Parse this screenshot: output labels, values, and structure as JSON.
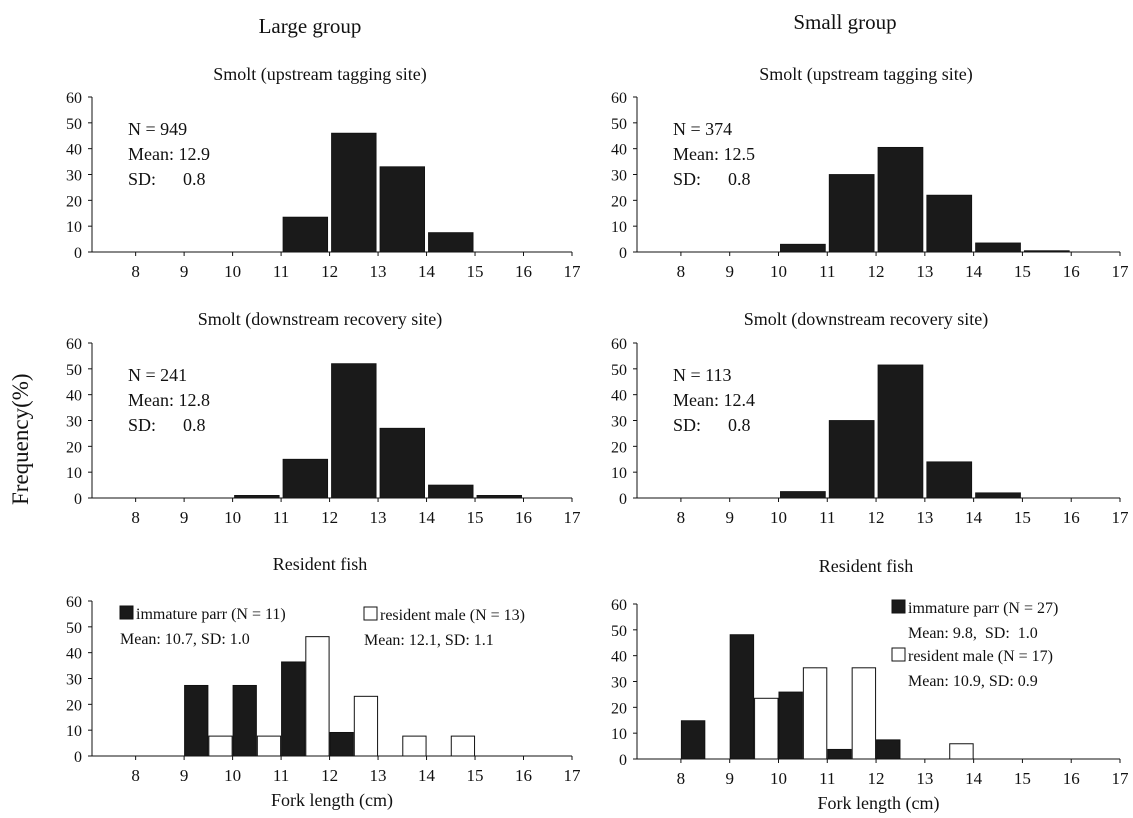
{
  "columns": {
    "left": "Large group",
    "right": "Small group"
  },
  "y_axis_label": "Frequency(%)",
  "colors": {
    "immature": "#1a1a1a",
    "resident": "#ffffff",
    "outline": "#111111"
  },
  "chart_data": [
    {
      "type": "bar",
      "group": "Large group",
      "title": "Smolt (upstream tagging site)",
      "xlabel": "",
      "ylabel": "Frequency(%)",
      "ylim": [
        0,
        60
      ],
      "y_ticks": [
        0,
        10,
        20,
        30,
        40,
        50,
        60
      ],
      "x_ticks": [
        8,
        9,
        10,
        11,
        12,
        13,
        14,
        15,
        16,
        17
      ],
      "bin_centers": [
        11.5,
        12.5,
        13.5,
        14.5
      ],
      "series": [
        {
          "style": "filled",
          "values": [
            13.5,
            46,
            33,
            7.5
          ]
        }
      ],
      "stats": [
        "N = 949",
        "Mean: 12.9",
        "SD:      0.8"
      ]
    },
    {
      "type": "bar",
      "group": "Small group",
      "title": "Smolt (upstream tagging site)",
      "xlabel": "",
      "ylabel": "Frequency(%)",
      "ylim": [
        0,
        60
      ],
      "y_ticks": [
        0,
        10,
        20,
        30,
        40,
        50,
        60
      ],
      "x_ticks": [
        8,
        9,
        10,
        11,
        12,
        13,
        14,
        15,
        16,
        17
      ],
      "bin_centers": [
        10.5,
        11.5,
        12.5,
        13.5,
        14.5,
        15.5
      ],
      "series": [
        {
          "style": "filled",
          "values": [
            3,
            30,
            40.5,
            22,
            3.5,
            0.5
          ]
        }
      ],
      "stats": [
        "N = 374",
        "Mean: 12.5",
        "SD:      0.8"
      ]
    },
    {
      "type": "bar",
      "group": "Large group",
      "title": "Smolt (downstream recovery site)",
      "xlabel": "",
      "ylabel": "Frequency(%)",
      "ylim": [
        0,
        60
      ],
      "y_ticks": [
        0,
        10,
        20,
        30,
        40,
        50,
        60
      ],
      "x_ticks": [
        8,
        9,
        10,
        11,
        12,
        13,
        14,
        15,
        16,
        17
      ],
      "bin_centers": [
        10.5,
        11.5,
        12.5,
        13.5,
        14.5,
        15.5
      ],
      "series": [
        {
          "style": "filled",
          "values": [
            1,
            15,
            52,
            27,
            5,
            1
          ]
        }
      ],
      "stats": [
        "N = 241",
        "Mean: 12.8",
        "SD:      0.8"
      ]
    },
    {
      "type": "bar",
      "group": "Small group",
      "title": "Smolt (downstream recovery site)",
      "xlabel": "",
      "ylabel": "Frequency(%)",
      "ylim": [
        0,
        60
      ],
      "y_ticks": [
        0,
        10,
        20,
        30,
        40,
        50,
        60
      ],
      "x_ticks": [
        8,
        9,
        10,
        11,
        12,
        13,
        14,
        15,
        16,
        17
      ],
      "bin_centers": [
        10.5,
        11.5,
        12.5,
        13.5,
        14.5
      ],
      "series": [
        {
          "style": "filled",
          "values": [
            2.5,
            30,
            51.5,
            14,
            2
          ]
        }
      ],
      "stats": [
        "N = 113",
        "Mean: 12.4",
        "SD:      0.8"
      ]
    },
    {
      "type": "bar",
      "group": "Large group",
      "title": "Resident fish",
      "xlabel": "Fork length (cm)",
      "ylabel": "Frequency(%)",
      "ylim": [
        0,
        60
      ],
      "y_ticks": [
        0,
        10,
        20,
        30,
        40,
        50,
        60
      ],
      "x_ticks": [
        8,
        9,
        10,
        11,
        12,
        13,
        14,
        15,
        16,
        17
      ],
      "series": [
        {
          "name": "immature parr (N = 11)",
          "style": "filled",
          "bin_centers": [
            9.25,
            10.25,
            11.25,
            12.25
          ],
          "values": [
            27.3,
            27.3,
            36.4,
            9.1
          ]
        },
        {
          "name": "resident male (N = 13)",
          "style": "open",
          "bin_centers": [
            9.75,
            10.75,
            11.75,
            12.75,
            13.75,
            14.75
          ],
          "values": [
            7.7,
            7.7,
            46.2,
            23.1,
            7.7,
            7.7
          ]
        }
      ],
      "legend": [
        {
          "label": "immature parr (N = 11)",
          "stats": "Mean: 10.7, SD: 1.0",
          "style": "filled"
        },
        {
          "label": "resident male (N = 13)",
          "stats": "Mean: 12.1, SD: 1.1",
          "style": "open"
        }
      ]
    },
    {
      "type": "bar",
      "group": "Small group",
      "title": "Resident fish",
      "xlabel": "Fork length (cm)",
      "ylabel": "Frequency(%)",
      "ylim": [
        0,
        60
      ],
      "y_ticks": [
        0,
        10,
        20,
        30,
        40,
        50,
        60
      ],
      "x_ticks": [
        8,
        9,
        10,
        11,
        12,
        13,
        14,
        15,
        16,
        17
      ],
      "series": [
        {
          "name": "immature parr (N = 27)",
          "style": "filled",
          "bin_centers": [
            8.25,
            9.25,
            10.25,
            11.25,
            12.25
          ],
          "values": [
            14.8,
            48.1,
            25.9,
            3.7,
            7.4
          ]
        },
        {
          "name": "resident male (N = 17)",
          "style": "open",
          "bin_centers": [
            9.75,
            10.75,
            11.75,
            13.75
          ],
          "values": [
            23.5,
            35.3,
            35.3,
            5.9
          ]
        }
      ],
      "legend": [
        {
          "label": "immature parr (N = 27)",
          "stats": "Mean: 9.8,  SD:  1.0",
          "style": "filled"
        },
        {
          "label": "resident male (N = 17)",
          "stats": "Mean: 10.9, SD: 0.9",
          "style": "open"
        }
      ]
    }
  ]
}
